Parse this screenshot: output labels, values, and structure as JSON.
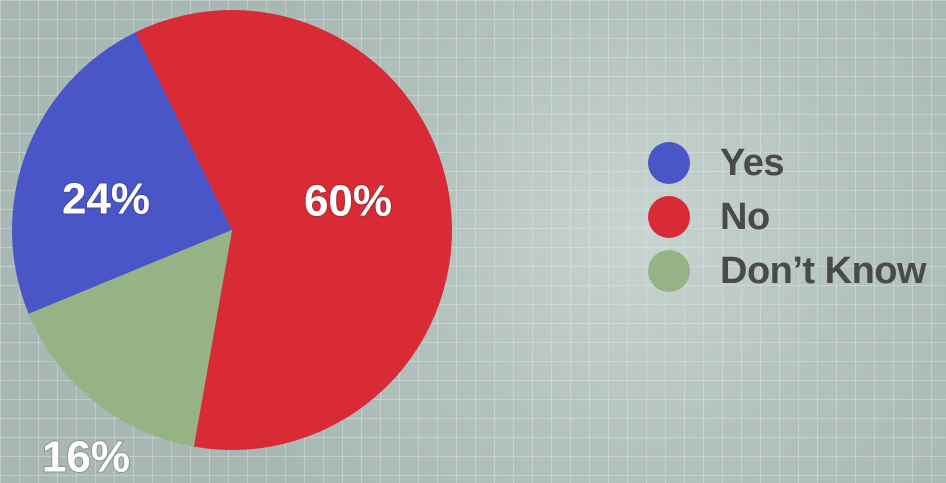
{
  "chart_data": {
    "type": "pie",
    "categories": [
      "Yes",
      "No",
      "Don’t Know"
    ],
    "values": [
      24,
      60,
      16
    ],
    "data_labels": [
      "24%",
      "60%",
      "16%"
    ],
    "colors": [
      "#4a55c8",
      "#d92b35",
      "#95b385"
    ],
    "legend": "right"
  }
}
